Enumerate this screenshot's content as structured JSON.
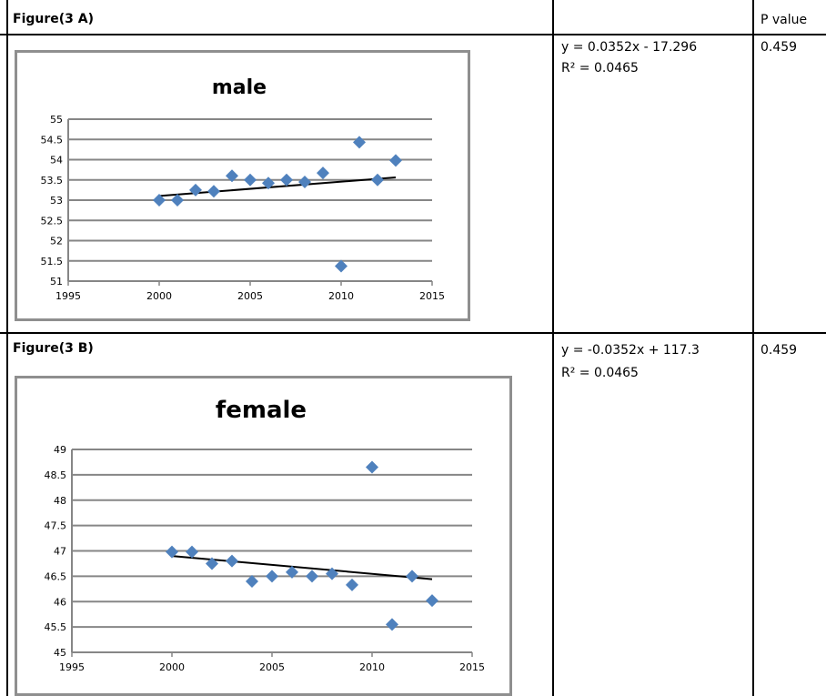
{
  "table": {
    "header_p": "P value",
    "rowA": {
      "label": "Figure(3 A)",
      "eq": "y = 0.0352x - 17.296",
      "r2": "R² = 0.0465",
      "p": "0.459"
    },
    "rowB": {
      "label": "Figure(3 B)",
      "eq": "y = -0.0352x + 117.3",
      "r2": "R² = 0.0465",
      "p": "0.459"
    }
  },
  "colors": {
    "marker": "#4f81bd",
    "trend": "#000000",
    "grid": "#868686",
    "frame": "#8f8f8f"
  },
  "chart_data": [
    {
      "type": "scatter",
      "title": "male",
      "xlabel": "",
      "ylabel": "",
      "xlim": [
        1995,
        2015
      ],
      "ylim": [
        51,
        55
      ],
      "xticks": [
        1995,
        2000,
        2005,
        2010,
        2015
      ],
      "yticks": [
        51,
        51.5,
        52,
        52.5,
        53,
        53.5,
        54,
        54.5,
        55
      ],
      "ytick_labels": [
        "51",
        "51.5",
        "52",
        "52.5",
        "53",
        "53.5",
        "54",
        "54.5",
        "55"
      ],
      "grid": true,
      "legend": "none",
      "x": [
        2000,
        2001,
        2002,
        2003,
        2004,
        2005,
        2006,
        2007,
        2008,
        2009,
        2010,
        2011,
        2012,
        2013
      ],
      "y": [
        53.0,
        53.0,
        53.25,
        53.22,
        53.6,
        53.5,
        53.42,
        53.5,
        53.45,
        53.67,
        51.37,
        54.43,
        53.5,
        53.98
      ],
      "trendline": {
        "slope": 0.0352,
        "intercept": -17.296
      }
    },
    {
      "type": "scatter",
      "title": "female",
      "xlabel": "",
      "ylabel": "",
      "xlim": [
        1995,
        2015
      ],
      "ylim": [
        45,
        49
      ],
      "xticks": [
        1995,
        2000,
        2005,
        2010,
        2015
      ],
      "yticks": [
        45,
        45.5,
        46,
        46.5,
        47,
        47.5,
        48,
        48.5,
        49
      ],
      "ytick_labels": [
        "45",
        "45.5",
        "46",
        "46.5",
        "47",
        "47.5",
        "48",
        "48.5",
        "49"
      ],
      "grid": true,
      "legend": "none",
      "x": [
        2000,
        2001,
        2002,
        2003,
        2004,
        2005,
        2006,
        2007,
        2008,
        2009,
        2010,
        2011,
        2012,
        2013
      ],
      "y": [
        46.98,
        46.98,
        46.75,
        46.8,
        46.4,
        46.5,
        46.58,
        46.5,
        46.55,
        46.33,
        48.65,
        45.55,
        46.5,
        46.02
      ],
      "trendline": {
        "slope": -0.0352,
        "intercept": 117.3
      }
    }
  ]
}
